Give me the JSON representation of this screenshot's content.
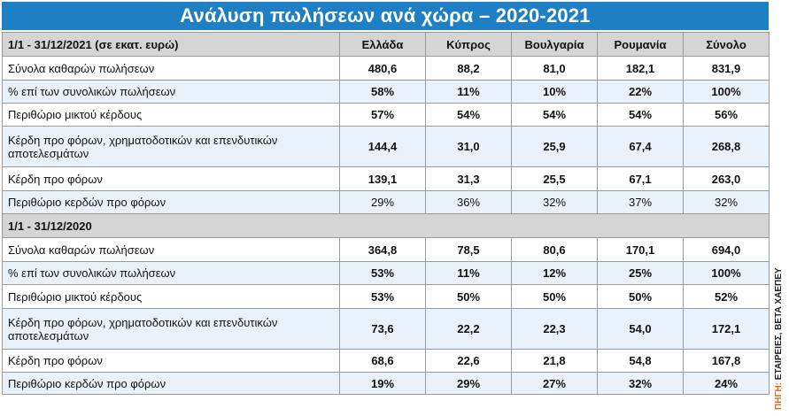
{
  "title": "Ανάλυση πωλήσεων ανά χώρα – 2020-2021",
  "header": {
    "period": "1/1 - 31/12/2021 (σε εκατ. ευρώ)",
    "columns": [
      "Ελλάδα",
      "Κύπρος",
      "Βουλγαρία",
      "Ρουμανία",
      "Σύνολο"
    ]
  },
  "section_2021_rows": [
    {
      "label": "Σύνολα καθαρών πωλήσεων",
      "values": [
        "480,6",
        "88,2",
        "81,0",
        "182,1",
        "831,9"
      ]
    },
    {
      "label": "% επί των συνολικών πωλήσεων",
      "values": [
        "58%",
        "11%",
        "10%",
        "22%",
        "100%"
      ]
    },
    {
      "label": "Περιθώριο μικτού κέρδους",
      "values": [
        "57%",
        "54%",
        "54%",
        "54%",
        "56%"
      ]
    },
    {
      "label": "Κέρδη προ φόρων, χρηματοδοτικών και επενδυτικών αποτελεσμάτων",
      "values": [
        "144,4",
        "31,0",
        "25,9",
        "67,4",
        "268,8"
      ]
    },
    {
      "label": "Κέρδη προ φόρων",
      "values": [
        "139,1",
        "31,3",
        "25,5",
        "67,1",
        "263,0"
      ]
    },
    {
      "label": "Περιθώριο κερδών προ φόρων",
      "values": [
        "29%",
        "36%",
        "32%",
        "37%",
        "32%"
      ]
    }
  ],
  "section_2020_label": "1/1 - 31/12/2020",
  "section_2020_rows": [
    {
      "label": "Σύνολα καθαρών πωλήσεων",
      "values": [
        "364,8",
        "78,5",
        "80,6",
        "170,1",
        "694,0"
      ]
    },
    {
      "label": "% επί των συνολικών πωλήσεων",
      "values": [
        "53%",
        "11%",
        "12%",
        "25%",
        "100%"
      ]
    },
    {
      "label": "Περιθώριο μικτού κέρδους",
      "values": [
        "53%",
        "50%",
        "50%",
        "50%",
        "52%"
      ]
    },
    {
      "label": "Κέρδη προ φόρων, χρηματοδοτικών και επενδυτικών αποτελεσμάτων",
      "values": [
        "73,6",
        "22,2",
        "22,3",
        "54,0",
        "172,1"
      ]
    },
    {
      "label": "Κέρδη προ φόρων",
      "values": [
        "68,6",
        "22,6",
        "21,8",
        "54,8",
        "167,8"
      ]
    },
    {
      "label": "Περιθώριο κερδών προ φόρων",
      "values": [
        "19%",
        "29%",
        "27%",
        "32%",
        "24%"
      ]
    }
  ],
  "source": {
    "prefix": "ΠΗΓΗ:",
    "text": " ΕΤΑΙΡΕΙΕΣ, ΒΕΤΑ ΧΑΕΠΕΥ"
  },
  "colors": {
    "title_bg": "#1f7fc4",
    "header_bg": "#d5d5d5",
    "alt_row_bg": "#e9f2fa",
    "source_accent": "#e06b1d"
  }
}
